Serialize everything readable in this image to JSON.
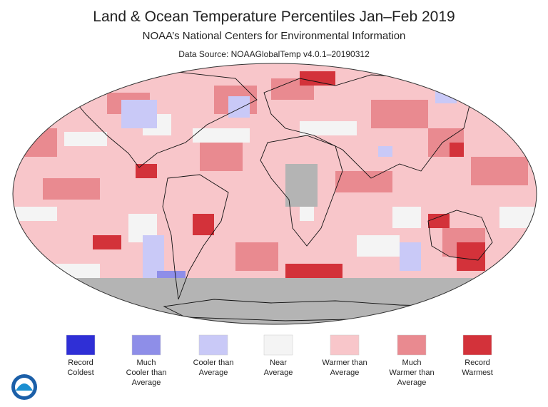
{
  "header": {
    "title": "Land & Ocean Temperature Percentiles Jan–Feb 2019",
    "subtitle": "NOAA’s National Centers for Environmental Information",
    "source": "Data Source: NOAAGlobalTemp v4.0.1–20190312"
  },
  "legend": {
    "items": [
      {
        "lines": [
          "Record",
          "Coldest"
        ],
        "color": "#2f2fd6"
      },
      {
        "lines": [
          "Much",
          "Cooler than",
          "Average"
        ],
        "color": "#8e8ee8"
      },
      {
        "lines": [
          "Cooler than",
          "Average"
        ],
        "color": "#c9c9f7"
      },
      {
        "lines": [
          "Near",
          "Average"
        ],
        "color": "#f4f4f4"
      },
      {
        "lines": [
          "Warmer than",
          "Average"
        ],
        "color": "#f8c6ca"
      },
      {
        "lines": [
          "Much",
          "Warmer than",
          "Average"
        ],
        "color": "#e98a90"
      },
      {
        "lines": [
          "Record",
          "Warmest"
        ],
        "color": "#d3323a"
      }
    ]
  }
}
